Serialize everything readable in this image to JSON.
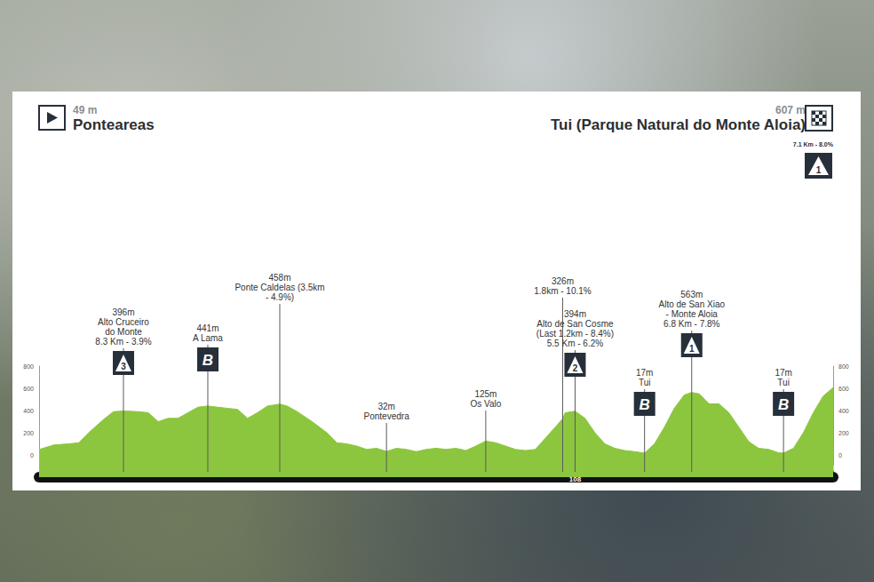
{
  "chart_data": {
    "type": "area",
    "start": {
      "elevation": "49 m",
      "name": "Ponteareas"
    },
    "finish": {
      "elevation": "607 m",
      "name": "Tui (Parque Natural do Monte Aloia)",
      "climb": "7.1 Km - 8.0%",
      "icon": "1"
    },
    "x": [
      0,
      3,
      6,
      8,
      10,
      13,
      15,
      17,
      20,
      22,
      24,
      26,
      28,
      30,
      32,
      34,
      36,
      38,
      40,
      42,
      44,
      46,
      48.5,
      50,
      52,
      55,
      58,
      60,
      62,
      64,
      66,
      68,
      70,
      72,
      74,
      76,
      78,
      80,
      82,
      84,
      86,
      88,
      90,
      92,
      94,
      96,
      98,
      100,
      102,
      104,
      105.5,
      106,
      108,
      110,
      112,
      114,
      116,
      118,
      120,
      122,
      124,
      126,
      128,
      130,
      131.5,
      133,
      135,
      137,
      139,
      141,
      143,
      145,
      147,
      149,
      150,
      152,
      154,
      156,
      158,
      160
    ],
    "values": [
      49,
      90,
      100,
      110,
      200,
      320,
      390,
      396,
      390,
      380,
      300,
      330,
      330,
      380,
      430,
      441,
      430,
      420,
      410,
      330,
      380,
      440,
      458,
      440,
      390,
      300,
      200,
      110,
      100,
      80,
      50,
      60,
      32,
      60,
      50,
      30,
      50,
      60,
      50,
      60,
      40,
      80,
      125,
      110,
      80,
      50,
      40,
      50,
      150,
      250,
      326,
      380,
      394,
      330,
      200,
      100,
      60,
      40,
      30,
      17,
      100,
      250,
      420,
      540,
      563,
      550,
      460,
      460,
      380,
      250,
      120,
      60,
      50,
      20,
      17,
      60,
      200,
      380,
      530,
      607
    ],
    "color": "#8cc63f",
    "xlim": [
      0,
      160
    ],
    "xticks": [
      0,
      17,
      34,
      48.5,
      70,
      90,
      105.5,
      108,
      122,
      131.5,
      150,
      160
    ],
    "ylim": [
      -200,
      800
    ],
    "yticks": [
      0,
      200,
      400,
      600,
      800
    ],
    "grid": false,
    "annotations": [
      {
        "km": 17,
        "lines": [
          "396m",
          "Alto Cruceiro",
          "do Monte",
          "8.3 Km - 3.9%"
        ],
        "icon": "3"
      },
      {
        "km": 34,
        "lines": [
          "441m",
          "A Lama"
        ],
        "icon": "B"
      },
      {
        "km": 48.5,
        "lines": [
          "458m",
          "Ponte Caldelas (3.5km",
          "- 4.9%)"
        ]
      },
      {
        "km": 70,
        "lines": [
          "32m",
          "Pontevedra"
        ]
      },
      {
        "km": 90,
        "lines": [
          "125m",
          "Os Valo"
        ]
      },
      {
        "km": 105.5,
        "lines": [
          "326m",
          "1.8km - 10.1%"
        ]
      },
      {
        "km": 108,
        "lines": [
          "394m",
          "Alto de San Cosme",
          "(Last 1.2km - 8.4%)",
          "5.5 Km - 6.2%"
        ],
        "icon": "2"
      },
      {
        "km": 122,
        "lines": [
          "17m",
          "Tui"
        ],
        "icon": "B"
      },
      {
        "km": 131.5,
        "lines": [
          "563m",
          "Alto de San Xiao",
          "- Monte Aloia",
          "6.8 Km - 7.8%"
        ],
        "icon": "1"
      },
      {
        "km": 150,
        "lines": [
          "17m",
          "Tui"
        ],
        "icon": "B"
      }
    ]
  }
}
